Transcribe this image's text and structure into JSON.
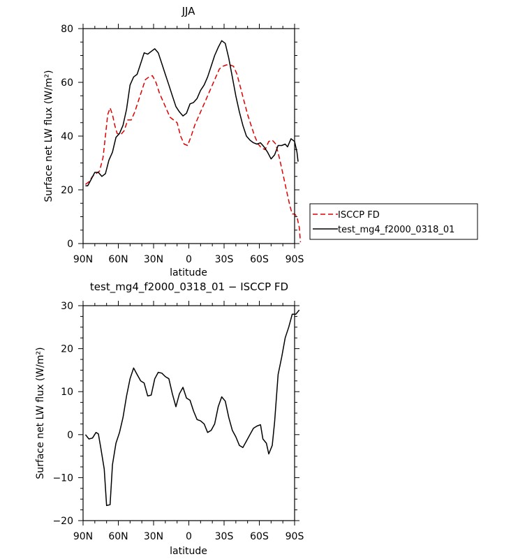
{
  "chart_data": [
    {
      "type": "line",
      "title": "JJA",
      "xlabel": "latitude",
      "ylabel": "Surface net LW flux (W/m²)",
      "xlim": [
        90,
        -90
      ],
      "ylim": [
        0,
        80
      ],
      "x_ticks": [
        90,
        60,
        30,
        0,
        -30,
        -60,
        -90
      ],
      "x_tick_labels": [
        "90N",
        "60N",
        "30N",
        "0",
        "30S",
        "60S",
        "90S"
      ],
      "y_ticks": [
        0,
        20,
        40,
        60,
        80
      ],
      "y_tick_labels": [
        "0",
        "20",
        "40",
        "60",
        "80"
      ],
      "legend": "right",
      "series": [
        {
          "name": "ISCCP FD",
          "color": "#e00000",
          "dash": "dashed",
          "points": [
            [
              88,
              22
            ],
            [
              85,
              23
            ],
            [
              82,
              25
            ],
            [
              79,
              26
            ],
            [
              76,
              27
            ],
            [
              73,
              32
            ],
            [
              71,
              40
            ],
            [
              69,
              48
            ],
            [
              67,
              50.5
            ],
            [
              65,
              48
            ],
            [
              63,
              44
            ],
            [
              61,
              41
            ],
            [
              58,
              40.5
            ],
            [
              55,
              42
            ],
            [
              52,
              46
            ],
            [
              49,
              46
            ],
            [
              46,
              49
            ],
            [
              43,
              53
            ],
            [
              40,
              57
            ],
            [
              37,
              61
            ],
            [
              34,
              62
            ],
            [
              31,
              62.5
            ],
            [
              28,
              60
            ],
            [
              25,
              56
            ],
            [
              22,
              53
            ],
            [
              19,
              50
            ],
            [
              16,
              47
            ],
            [
              13,
              46
            ],
            [
              10,
              45
            ],
            [
              7,
              40
            ],
            [
              4,
              37
            ],
            [
              1,
              36.5
            ],
            [
              -2,
              40
            ],
            [
              -5,
              44
            ],
            [
              -8,
              47
            ],
            [
              -11,
              50
            ],
            [
              -14,
              53
            ],
            [
              -17,
              56
            ],
            [
              -20,
              59
            ],
            [
              -23,
              62
            ],
            [
              -26,
              65
            ],
            [
              -29,
              66
            ],
            [
              -32,
              66.5
            ],
            [
              -35,
              66.5
            ],
            [
              -38,
              66
            ],
            [
              -41,
              63
            ],
            [
              -44,
              58
            ],
            [
              -47,
              53
            ],
            [
              -50,
              48
            ],
            [
              -53,
              44
            ],
            [
              -56,
              40
            ],
            [
              -59,
              37
            ],
            [
              -62,
              35.5
            ],
            [
              -65,
              35
            ],
            [
              -68,
              38
            ],
            [
              -71,
              38.5
            ],
            [
              -74,
              37
            ],
            [
              -77,
              32
            ],
            [
              -80,
              26
            ],
            [
              -83,
              20
            ],
            [
              -86,
              14
            ],
            [
              -88,
              11
            ],
            [
              -90,
              11
            ],
            [
              -92,
              10
            ],
            [
              -94,
              6
            ],
            [
              -95,
              0.5
            ]
          ]
        },
        {
          "name": "test_mg4_f2000_0318_01",
          "color": "#000000",
          "dash": "solid",
          "points": [
            [
              88,
              21.5
            ],
            [
              86,
              21.5
            ],
            [
              83,
              24
            ],
            [
              80,
              26.5
            ],
            [
              77,
              26.5
            ],
            [
              74,
              25
            ],
            [
              71,
              26
            ],
            [
              68,
              31
            ],
            [
              65,
              34
            ],
            [
              62,
              39.5
            ],
            [
              59,
              41
            ],
            [
              56,
              44
            ],
            [
              53,
              50
            ],
            [
              50,
              59
            ],
            [
              47,
              62
            ],
            [
              44,
              63
            ],
            [
              41,
              67
            ],
            [
              38,
              71
            ],
            [
              35,
              70.5
            ],
            [
              32,
              71.5
            ],
            [
              29,
              72.5
            ],
            [
              26,
              71
            ],
            [
              23,
              67
            ],
            [
              20,
              63
            ],
            [
              17,
              59
            ],
            [
              14,
              55
            ],
            [
              11,
              51
            ],
            [
              8,
              49
            ],
            [
              5,
              47.5
            ],
            [
              2,
              48.5
            ],
            [
              -1,
              52
            ],
            [
              -4,
              52.5
            ],
            [
              -7,
              54
            ],
            [
              -10,
              57
            ],
            [
              -13,
              59
            ],
            [
              -16,
              62
            ],
            [
              -19,
              66
            ],
            [
              -22,
              70
            ],
            [
              -25,
              73
            ],
            [
              -28,
              75.5
            ],
            [
              -31,
              74.5
            ],
            [
              -34,
              69
            ],
            [
              -37,
              62
            ],
            [
              -40,
              55
            ],
            [
              -43,
              49
            ],
            [
              -46,
              44
            ],
            [
              -49,
              40
            ],
            [
              -52,
              38.5
            ],
            [
              -55,
              37.5
            ],
            [
              -58,
              37
            ],
            [
              -61,
              37.5
            ],
            [
              -64,
              36
            ],
            [
              -67,
              34
            ],
            [
              -70,
              31.5
            ],
            [
              -73,
              33
            ],
            [
              -76,
              36.5
            ],
            [
              -79,
              36.5
            ],
            [
              -82,
              37
            ],
            [
              -84,
              36
            ],
            [
              -87,
              39
            ],
            [
              -90,
              38
            ],
            [
              -92,
              34
            ],
            [
              -93,
              30.5
            ]
          ]
        }
      ]
    },
    {
      "type": "line",
      "title": "test_mg4_f2000_0318_01 − ISCCP FD",
      "xlabel": "latitude",
      "ylabel": "Surface net LW flux (W/m²)",
      "xlim": [
        90,
        -90
      ],
      "ylim": [
        -20,
        30
      ],
      "x_ticks": [
        90,
        60,
        30,
        0,
        -30,
        -60,
        -90
      ],
      "x_tick_labels": [
        "90N",
        "60N",
        "30N",
        "0",
        "30S",
        "60S",
        "90S"
      ],
      "y_ticks": [
        -20,
        -10,
        0,
        10,
        20,
        30
      ],
      "y_tick_labels": [
        "−20",
        "−10",
        "0",
        "10",
        "20",
        "30"
      ],
      "series": [
        {
          "name": "",
          "color": "#000000",
          "dash": "solid",
          "points": [
            [
              88,
              0
            ],
            [
              85,
              -1
            ],
            [
              82,
              -0.8
            ],
            [
              79,
              0.5
            ],
            [
              77,
              0.2
            ],
            [
              75,
              -3
            ],
            [
              72,
              -8
            ],
            [
              70,
              -16.5
            ],
            [
              67,
              -16.3
            ],
            [
              65,
              -7
            ],
            [
              62,
              -2
            ],
            [
              59,
              0.5
            ],
            [
              56,
              4
            ],
            [
              53,
              9
            ],
            [
              50,
              13
            ],
            [
              47,
              15.5
            ],
            [
              44,
              14
            ],
            [
              41,
              12.5
            ],
            [
              38,
              12
            ],
            [
              35,
              9
            ],
            [
              32,
              9.2
            ],
            [
              29,
              13
            ],
            [
              26,
              14.5
            ],
            [
              23,
              14.3
            ],
            [
              20,
              13.5
            ],
            [
              17,
              13
            ],
            [
              14,
              9.5
            ],
            [
              11,
              6.5
            ],
            [
              8,
              9.5
            ],
            [
              5,
              11
            ],
            [
              2,
              8.5
            ],
            [
              -1,
              8
            ],
            [
              -4,
              5.5
            ],
            [
              -7,
              3.5
            ],
            [
              -10,
              3.2
            ],
            [
              -13,
              2.5
            ],
            [
              -16,
              0.5
            ],
            [
              -19,
              1
            ],
            [
              -22,
              2.5
            ],
            [
              -25,
              6.5
            ],
            [
              -28,
              8.8
            ],
            [
              -31,
              7.8
            ],
            [
              -34,
              4
            ],
            [
              -37,
              1
            ],
            [
              -40,
              -0.5
            ],
            [
              -43,
              -2.5
            ],
            [
              -46,
              -3
            ],
            [
              -49,
              -1.5
            ],
            [
              -52,
              0
            ],
            [
              -55,
              1.5
            ],
            [
              -58,
              2
            ],
            [
              -61,
              2.3
            ],
            [
              -63,
              -1
            ],
            [
              -66,
              -2
            ],
            [
              -68,
              -4.5
            ],
            [
              -71,
              -2.5
            ],
            [
              -73,
              3
            ],
            [
              -76,
              14
            ],
            [
              -79,
              18
            ],
            [
              -82,
              22.5
            ],
            [
              -85,
              25
            ],
            [
              -88,
              28
            ],
            [
              -91,
              28
            ],
            [
              -94,
              29
            ]
          ]
        }
      ]
    }
  ]
}
